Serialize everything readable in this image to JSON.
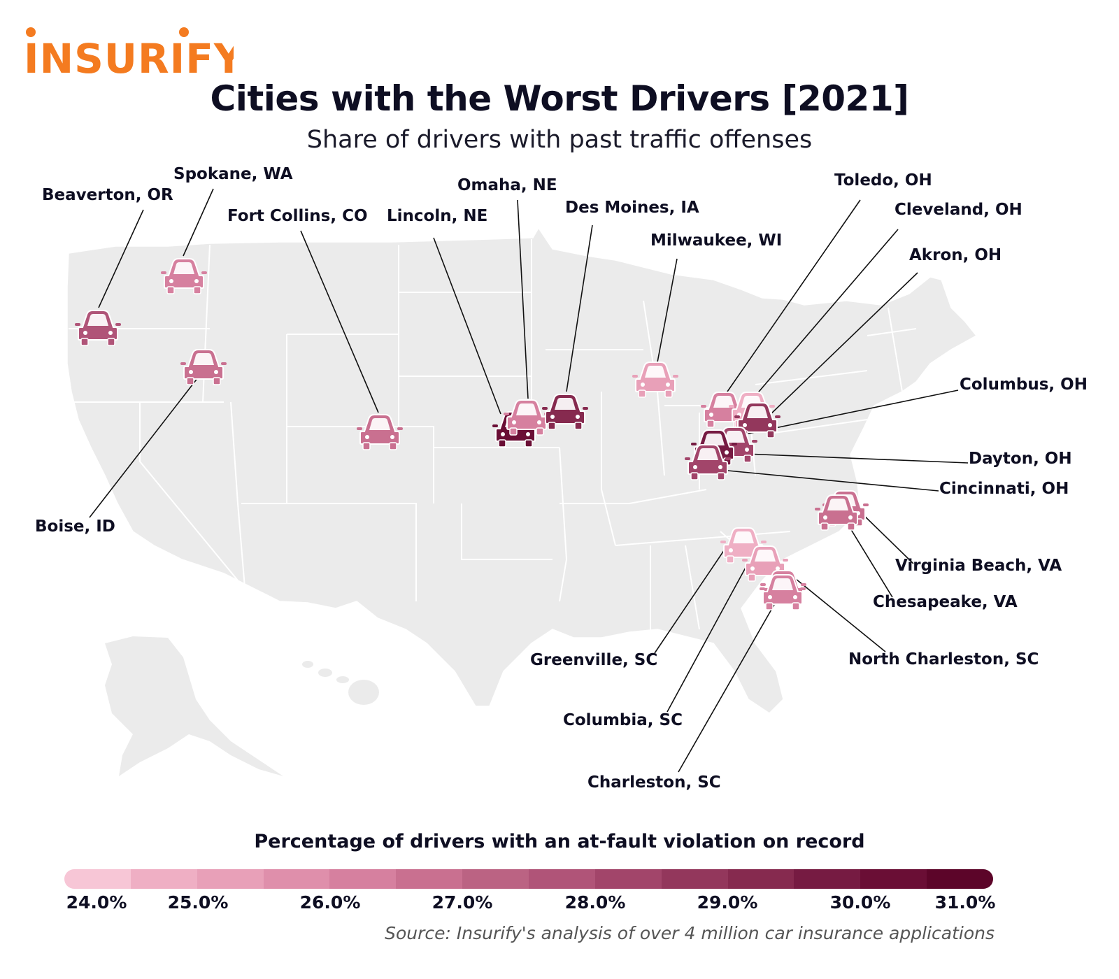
{
  "brand": "INSURIFY",
  "title": "Cities with the Worst Drivers [2021]",
  "subtitle": "Share of drivers with past traffic offenses",
  "legend": {
    "title": "Percentage of drivers with an at-fault violation on record",
    "ticks": [
      "24.0%",
      "25.0%",
      "26.0%",
      "27.0%",
      "28.0%",
      "29.0%",
      "30.0%",
      "31.0%"
    ],
    "colors": [
      "#f7c6d6",
      "#efafc4",
      "#e8a0b8",
      "#df8fab",
      "#d6809f",
      "#c97090",
      "#bb6383",
      "#b05478",
      "#a2456a",
      "#93375c",
      "#862a4f",
      "#761b42",
      "#6a0e35",
      "#5c0529"
    ]
  },
  "cities": [
    {
      "name": "Beaverton, OR",
      "color": "#b05478"
    },
    {
      "name": "Spokane, WA",
      "color": "#d6809f"
    },
    {
      "name": "Boise, ID",
      "color": "#c97090"
    },
    {
      "name": "Fort Collins, CO",
      "color": "#c97090"
    },
    {
      "name": "Lincoln, NE",
      "color": "#6a0e35"
    },
    {
      "name": "Omaha, NE",
      "color": "#d6809f"
    },
    {
      "name": "Des Moines, IA",
      "color": "#862a4f"
    },
    {
      "name": "Milwaukee, WI",
      "color": "#e8a0b8"
    },
    {
      "name": "Toledo, OH",
      "color": "#d6809f"
    },
    {
      "name": "Cleveland, OH",
      "color": "#efafc4"
    },
    {
      "name": "Akron, OH",
      "color": "#93375c"
    },
    {
      "name": "Columbus, OH",
      "color": "#a2456a"
    },
    {
      "name": "Dayton, OH",
      "color": "#761b42"
    },
    {
      "name": "Cincinnati, OH",
      "color": "#a2456a"
    },
    {
      "name": "Virginia Beach, VA",
      "color": "#c97090"
    },
    {
      "name": "Chesapeake, VA",
      "color": "#c97090"
    },
    {
      "name": "Greenville, SC",
      "color": "#efafc4"
    },
    {
      "name": "Columbia, SC",
      "color": "#e8a0b8"
    },
    {
      "name": "North Charleston, SC",
      "color": "#d6809f"
    },
    {
      "name": "Charleston, SC",
      "color": "#d6809f"
    }
  ],
  "source": "Source: Insurify's analysis of over 4 million car insurance applications"
}
